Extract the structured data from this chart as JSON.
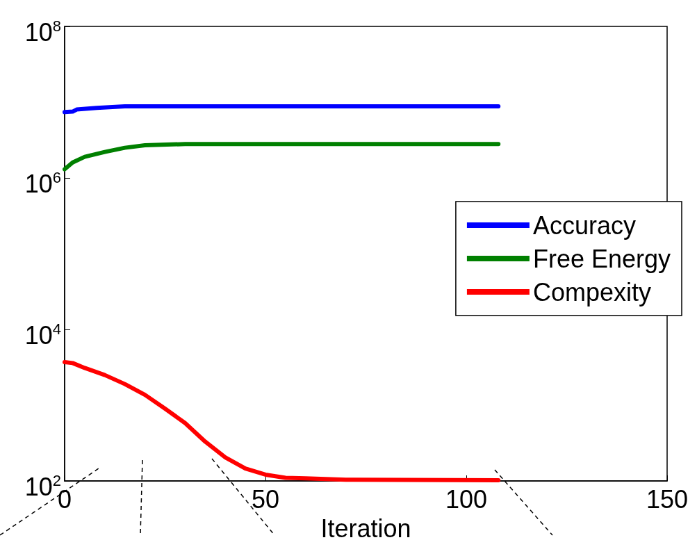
{
  "chart_data": {
    "type": "line",
    "xlabel": "Iteration",
    "series": [
      {
        "name": "Accuracy",
        "color": "#0000ff",
        "x": [
          0,
          2,
          3,
          8,
          15,
          108
        ],
        "values": [
          7400000,
          7500000,
          8000000,
          8400000,
          8800000,
          8800000
        ]
      },
      {
        "name": "Free Energy",
        "color": "#008000",
        "x": [
          0,
          2,
          5,
          10,
          15,
          20,
          30,
          108
        ],
        "values": [
          1300000,
          1600000,
          1900000,
          2200000,
          2500000,
          2700000,
          2800000,
          2800000
        ]
      },
      {
        "name": "Compexity",
        "color": "#ff0000",
        "x": [
          0,
          2,
          5,
          10,
          15,
          20,
          25,
          30,
          35,
          40,
          45,
          50,
          55,
          60,
          70,
          108
        ],
        "values": [
          3700,
          3600,
          3100,
          2500,
          1900,
          1370,
          900,
          580,
          330,
          205,
          146,
          121,
          110,
          108,
          104,
          102
        ]
      }
    ],
    "xlim": [
      0,
      150
    ],
    "xticks": [
      0,
      50,
      100,
      150
    ],
    "ylim": [
      100,
      100000000
    ],
    "log": true,
    "yticks": [
      {
        "value": 100,
        "label": "10$^{2}$"
      },
      {
        "value": 10000,
        "label": "10$^{4}$"
      },
      {
        "value": 1000000,
        "label": "10$^{6}$"
      },
      {
        "value": 100000000,
        "label": "10$^{8}$"
      }
    ],
    "grid": false,
    "legend": "right",
    "marker": "none",
    "line_style": "solid"
  }
}
